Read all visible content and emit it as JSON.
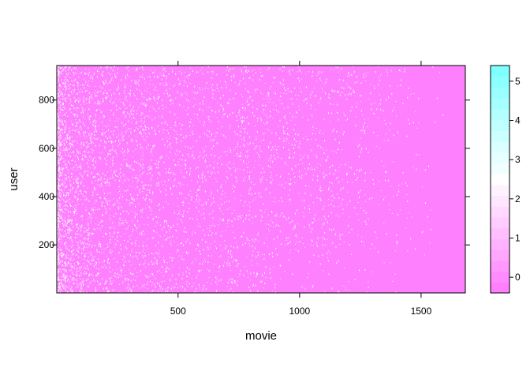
{
  "chart_data": {
    "type": "heatmap",
    "title": "",
    "xlabel": "movie",
    "ylabel": "user",
    "xlim": [
      1,
      1682
    ],
    "ylim": [
      1,
      943
    ],
    "x_ticks": [
      500,
      1000,
      1500
    ],
    "y_ticks": [
      200,
      400,
      600,
      800
    ],
    "colorbar": {
      "ticks": [
        0,
        1,
        2,
        3,
        4,
        5
      ],
      "range": [
        -0.4,
        5.4
      ],
      "colors": [
        "#ff80ff",
        "#ff8cff",
        "#ff99ff",
        "#ffa6ff",
        "#ffb3ff",
        "#ffbfff",
        "#ffccff",
        "#ffd9ff",
        "#ffe6ff",
        "#fff2ff",
        "#ffffff",
        "#f2ffff",
        "#e6ffff",
        "#d9ffff",
        "#ccffff",
        "#bfffff",
        "#b3ffff",
        "#a6ffff",
        "#99ffff",
        "#8cffff",
        "#80ffff"
      ]
    },
    "background_value": 0
  }
}
